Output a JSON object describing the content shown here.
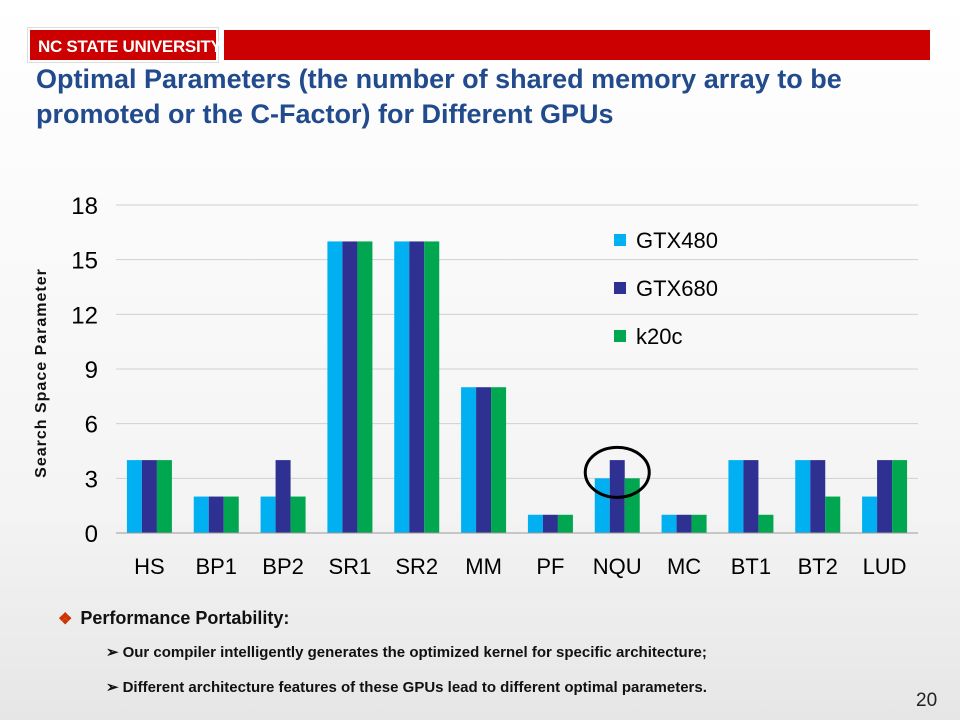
{
  "header": {
    "logo_text": "NC STATE UNIVERSITY",
    "brand_color": "#cc0000",
    "title": "Optimal Parameters (the number of shared memory array to be promoted or the C-Factor) for Different GPUs"
  },
  "chart_data": {
    "type": "bar",
    "ylabel": "Search Space Parameter",
    "xlabel": "",
    "ylim": [
      0,
      18
    ],
    "yticks": [
      0,
      3,
      6,
      9,
      12,
      15,
      18
    ],
    "grid": true,
    "legend_position": "top-right",
    "categories": [
      "HS",
      "BP1",
      "BP2",
      "SR1",
      "SR2",
      "MM",
      "PF",
      "NQU",
      "MC",
      "BT1",
      "BT2",
      "LUD"
    ],
    "series": [
      {
        "name": "GTX480",
        "color": "#00b0f0",
        "values": [
          4,
          2,
          2,
          16,
          16,
          8,
          1,
          3,
          1,
          4,
          4,
          2
        ]
      },
      {
        "name": "GTX680",
        "color": "#2e3192",
        "values": [
          4,
          2,
          4,
          16,
          16,
          8,
          1,
          4,
          1,
          4,
          4,
          4
        ]
      },
      {
        "name": "k20c",
        "color": "#00a650",
        "values": [
          4,
          2,
          2,
          16,
          16,
          8,
          1,
          3,
          1,
          1,
          2,
          4
        ]
      }
    ],
    "highlighted_category": "NQU"
  },
  "bullets": {
    "main": "Performance Portability:",
    "sub": [
      "Our compiler intelligently generates the optimized kernel for specific architecture;",
      "Different architecture features of these GPUs lead to different optimal parameters."
    ]
  },
  "page_number": "20"
}
